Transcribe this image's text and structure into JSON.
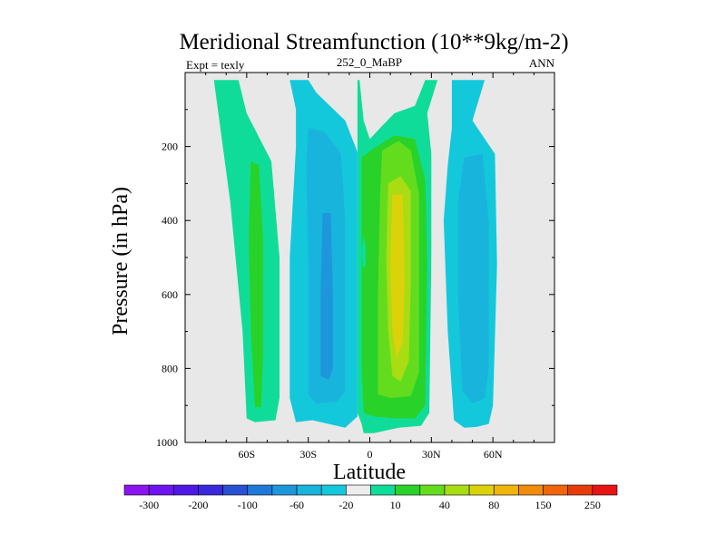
{
  "chart_data": {
    "type": "heatmap",
    "title": "Meridional Streamfunction (10**9kg/m-2)",
    "left_label": "Expt = texly",
    "center_label": "252_0_MaBP",
    "right_label": "ANN",
    "xlabel": "Latitude",
    "ylabel": "Pressure (in hPa)",
    "xlim": [
      -90,
      90
    ],
    "ylim": [
      1000,
      0
    ],
    "x_ticks": [
      {
        "value": -60,
        "label": "60S"
      },
      {
        "value": -30,
        "label": "30S"
      },
      {
        "value": 0,
        "label": "0"
      },
      {
        "value": 30,
        "label": "30N"
      },
      {
        "value": 60,
        "label": "60N"
      }
    ],
    "y_ticks": [
      {
        "value": 200,
        "label": "200"
      },
      {
        "value": 400,
        "label": "400"
      },
      {
        "value": 600,
        "label": "600"
      },
      {
        "value": 800,
        "label": "800"
      },
      {
        "value": 1000,
        "label": "1000"
      }
    ],
    "background_color": "#e8e8e8",
    "colorbar": {
      "colors": [
        "#8c14f0",
        "#6e14f0",
        "#5018e6",
        "#3a28dc",
        "#2850d2",
        "#1e78d8",
        "#1e96dc",
        "#19b4dc",
        "#14c8dc",
        "#ededed",
        "#10dc9a",
        "#28d228",
        "#64dc1e",
        "#aadc14",
        "#dcd20a",
        "#f0b40a",
        "#f08c0a",
        "#f0640a",
        "#e63c0a",
        "#e61414"
      ],
      "labels": [
        {
          "after_box": 0,
          "text": "-300"
        },
        {
          "after_box": 2,
          "text": "-200"
        },
        {
          "after_box": 4,
          "text": "-100"
        },
        {
          "after_box": 6,
          "text": "-60"
        },
        {
          "after_box": 8,
          "text": "-20"
        },
        {
          "after_box": 10,
          "text": "10"
        },
        {
          "after_box": 12,
          "text": "40"
        },
        {
          "after_box": 14,
          "text": "80"
        },
        {
          "after_box": 16,
          "text": "150"
        },
        {
          "after_box": 18,
          "text": "250"
        }
      ]
    },
    "contour_regions": [
      {
        "name": "sh-cell-outer",
        "color": "#10dc9a",
        "points": [
          [
            -76,
            20
          ],
          [
            -64,
            20
          ],
          [
            -60,
            110
          ],
          [
            -48,
            240
          ],
          [
            -44,
            500
          ],
          [
            -44,
            880
          ],
          [
            -46,
            940
          ],
          [
            -56,
            945
          ],
          [
            -60,
            935
          ],
          [
            -62,
            700
          ],
          [
            -68,
            350
          ]
        ]
      },
      {
        "name": "sh-cell-inner",
        "color": "#28d228",
        "points": [
          [
            -58,
            240
          ],
          [
            -54,
            250
          ],
          [
            -52,
            450
          ],
          [
            -52,
            760
          ],
          [
            -53,
            905
          ],
          [
            -56,
            905
          ],
          [
            -58,
            700
          ],
          [
            -59,
            450
          ]
        ]
      },
      {
        "name": "ferrel-outer",
        "color": "#14c8dc",
        "points": [
          [
            -39,
            20
          ],
          [
            -30,
            20
          ],
          [
            -26,
            55
          ],
          [
            -12,
            130
          ],
          [
            -6,
            215
          ],
          [
            -6,
            930
          ],
          [
            -12,
            960
          ],
          [
            -28,
            940
          ],
          [
            -36,
            945
          ],
          [
            -39,
            880
          ],
          [
            -39,
            500
          ],
          [
            -36,
            200
          ],
          [
            -36,
            100
          ]
        ]
      },
      {
        "name": "ferrel-mid",
        "color": "#19b4dc",
        "points": [
          [
            -30,
            150
          ],
          [
            -22,
            160
          ],
          [
            -14,
            220
          ],
          [
            -12,
            400
          ],
          [
            -12,
            860
          ],
          [
            -16,
            890
          ],
          [
            -26,
            895
          ],
          [
            -30,
            870
          ],
          [
            -30,
            520
          ],
          [
            -31,
            250
          ]
        ]
      },
      {
        "name": "ferrel-inner",
        "color": "#1e96dc",
        "points": [
          [
            -23,
            380
          ],
          [
            -19,
            380
          ],
          [
            -18,
            600
          ],
          [
            -18,
            800
          ],
          [
            -20,
            830
          ],
          [
            -24,
            820
          ],
          [
            -24,
            600
          ]
        ]
      },
      {
        "name": "hadley-outer",
        "color": "#10dc9a",
        "points": [
          [
            -6,
            20
          ],
          [
            -5,
            20
          ],
          [
            -3,
            130
          ],
          [
            0,
            180
          ],
          [
            5,
            150
          ],
          [
            12,
            110
          ],
          [
            22,
            90
          ],
          [
            27,
            20
          ],
          [
            33,
            20
          ],
          [
            28,
            110
          ],
          [
            30,
            220
          ],
          [
            30,
            500
          ],
          [
            29,
            920
          ],
          [
            25,
            955
          ],
          [
            14,
            960
          ],
          [
            2,
            975
          ],
          [
            -3,
            975
          ],
          [
            -4,
            950
          ],
          [
            -6,
            920
          ]
        ]
      },
      {
        "name": "hadley-green",
        "color": "#28d228",
        "points": [
          [
            -4,
            230
          ],
          [
            2,
            205
          ],
          [
            12,
            170
          ],
          [
            22,
            180
          ],
          [
            27,
            290
          ],
          [
            28,
            500
          ],
          [
            27,
            900
          ],
          [
            22,
            935
          ],
          [
            12,
            935
          ],
          [
            2,
            930
          ],
          [
            -3,
            920
          ],
          [
            -4,
            800
          ],
          [
            -4,
            500
          ]
        ]
      },
      {
        "name": "hadley-yellowgreen",
        "color": "#64dc1e",
        "points": [
          [
            6,
            210
          ],
          [
            14,
            185
          ],
          [
            20,
            210
          ],
          [
            24,
            330
          ],
          [
            24,
            600
          ],
          [
            24,
            810
          ],
          [
            20,
            875
          ],
          [
            10,
            880
          ],
          [
            4,
            870
          ],
          [
            4,
            600
          ],
          [
            5,
            330
          ]
        ]
      },
      {
        "name": "hadley-lime",
        "color": "#aadc14",
        "points": [
          [
            9,
            300
          ],
          [
            15,
            280
          ],
          [
            20,
            320
          ],
          [
            20,
            560
          ],
          [
            19,
            780
          ],
          [
            15,
            835
          ],
          [
            11,
            820
          ],
          [
            9,
            700
          ],
          [
            8,
            500
          ]
        ]
      },
      {
        "name": "hadley-gold",
        "color": "#dcd20a",
        "points": [
          [
            11,
            330
          ],
          [
            16,
            330
          ],
          [
            17,
            560
          ],
          [
            16,
            730
          ],
          [
            13,
            770
          ],
          [
            11,
            700
          ],
          [
            10,
            520
          ]
        ]
      },
      {
        "name": "equator-notch",
        "color": "#10dc9a",
        "points": [
          [
            -3,
            440
          ],
          [
            -2,
            470
          ],
          [
            -2,
            520
          ],
          [
            -3,
            530
          ],
          [
            -4,
            490
          ]
        ]
      },
      {
        "name": "nh-cell-outer",
        "color": "#14c8dc",
        "points": [
          [
            43,
            20
          ],
          [
            50,
            20
          ],
          [
            56,
            20
          ],
          [
            50,
            130
          ],
          [
            61,
            220
          ],
          [
            62,
            520
          ],
          [
            60,
            900
          ],
          [
            58,
            950
          ],
          [
            52,
            958
          ],
          [
            46,
            960
          ],
          [
            41,
            940
          ],
          [
            38,
            700
          ],
          [
            36,
            400
          ],
          [
            38,
            250
          ],
          [
            40,
            150
          ],
          [
            40,
            20
          ]
        ]
      },
      {
        "name": "nh-cell-inner",
        "color": "#19b4dc",
        "points": [
          [
            46,
            230
          ],
          [
            55,
            220
          ],
          [
            58,
            400
          ],
          [
            58,
            800
          ],
          [
            56,
            880
          ],
          [
            50,
            895
          ],
          [
            45,
            860
          ],
          [
            43,
            600
          ],
          [
            43,
            350
          ]
        ]
      }
    ]
  }
}
